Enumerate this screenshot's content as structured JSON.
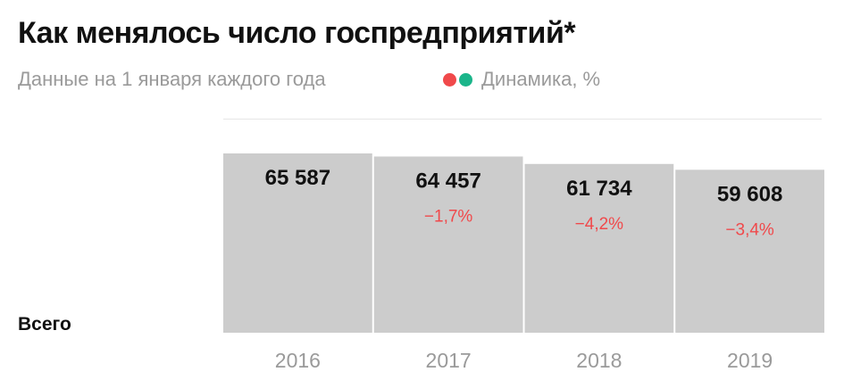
{
  "title": "Как менялось число госпредприятий*",
  "subtitle": "Данные на 1 января каждого года",
  "legend": {
    "label": "Динамика, %",
    "colors": [
      "#f0494b",
      "#1bb58a"
    ]
  },
  "row_label": "Всего",
  "chart_data": {
    "type": "bar",
    "title": "Как менялось число госпредприятий*",
    "subtitle": "Данные на 1 января каждого года",
    "categories": [
      "2016",
      "2017",
      "2018",
      "2019"
    ],
    "values": [
      65587,
      64457,
      61734,
      59608
    ],
    "value_labels": [
      "65 587",
      "64 457",
      "61 734",
      "59 608"
    ],
    "change_labels": [
      "",
      "−1,7%",
      "−4,2%",
      "−3,4%"
    ],
    "change_values": [
      null,
      -1.7,
      -4.2,
      -3.4
    ],
    "bar_color": "#cccccc",
    "change_color": "#f0494b",
    "ylim": [
      0,
      65587
    ],
    "grid": false
  }
}
